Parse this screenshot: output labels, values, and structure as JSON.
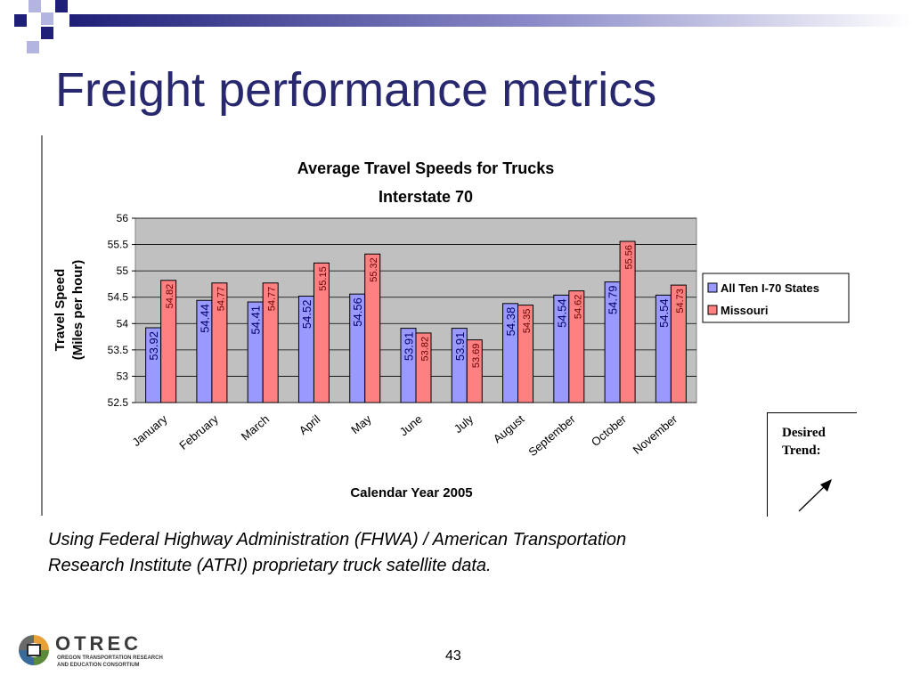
{
  "slide": {
    "title": "Freight performance metrics",
    "caption_line1": "Using Federal Highway Administration (FHWA)  / American Transportation",
    "caption_line2": "Research Institute (ATRI) proprietary truck satellite data.",
    "page_number": "43",
    "desired_trend_line1": "Desired",
    "desired_trend_line2": "Trend:",
    "logo_word": "OTREC",
    "logo_sub_line1": "OREGON TRANSPORTATION RESEARCH",
    "logo_sub_line2": "AND EDUCATION CONSORTIUM",
    "colors": {
      "title": "#28286e",
      "decor_dark": "#1f1f78",
      "decor_light": "#b4b4e0",
      "plot_bg": "#c0c0c0",
      "series1": "#9999ff",
      "series2": "#ff8080"
    }
  },
  "chart_data": {
    "type": "bar",
    "title_line1": "Average Travel Speeds for Trucks",
    "title_line2": "Interstate 70",
    "xlabel": "Calendar Year 2005",
    "ylabel_line1": "Travel Speed",
    "ylabel_line2": "(Miles per hour)",
    "ylim": [
      52.5,
      56
    ],
    "yticks": [
      "52.5",
      "53",
      "53.5",
      "54",
      "54.5",
      "55",
      "55.5",
      "56"
    ],
    "grid": true,
    "legend_position": "right",
    "categories": [
      "January",
      "February",
      "March",
      "April",
      "May",
      "June",
      "July",
      "August",
      "September",
      "October",
      "November"
    ],
    "series": [
      {
        "name": "All Ten I-70 States",
        "color": "#9999ff",
        "values": [
          53.92,
          54.44,
          54.41,
          54.52,
          54.56,
          53.91,
          53.91,
          54.38,
          54.54,
          54.79,
          54.54
        ],
        "labels": [
          "53.92",
          "54.44",
          "54.41",
          "54.52",
          "54.56",
          "53.91",
          "53.91",
          "54.38",
          "54.54",
          "54.79",
          "54.54"
        ]
      },
      {
        "name": "Missouri",
        "color": "#ff8080",
        "values": [
          54.82,
          54.77,
          54.77,
          55.15,
          55.32,
          53.82,
          53.69,
          54.35,
          54.62,
          55.56,
          54.73
        ],
        "labels": [
          "54.82",
          "54.77",
          "54.77",
          "55.15",
          "55.32",
          "53.82",
          "53.69",
          "54.35",
          "54.62",
          "55.56",
          "54.73"
        ]
      }
    ]
  }
}
